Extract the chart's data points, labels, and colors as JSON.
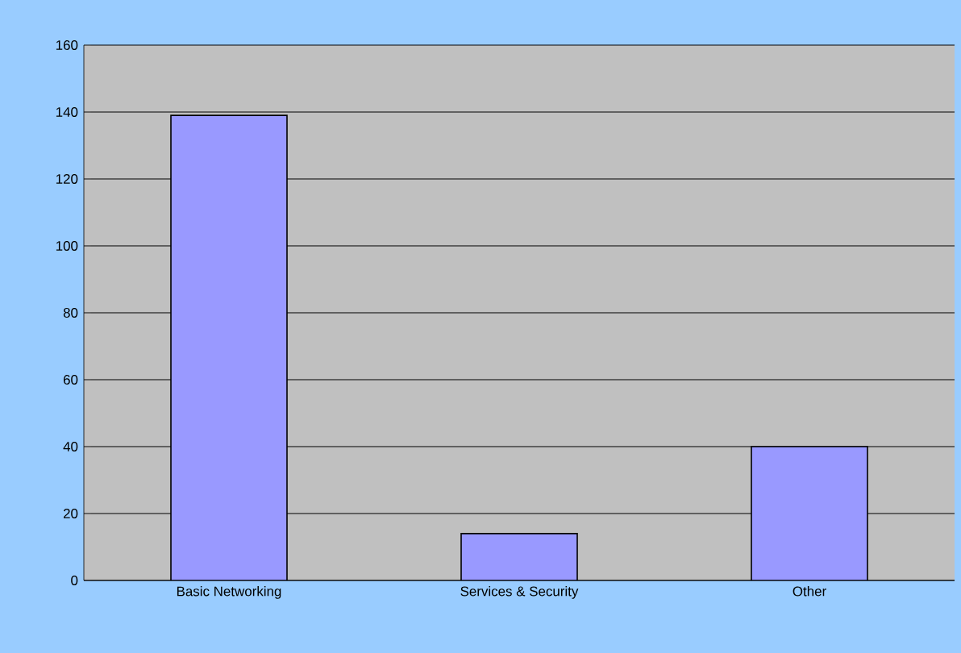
{
  "chart_data": {
    "type": "bar",
    "categories": [
      "Basic Networking",
      "Services & Security",
      "Other"
    ],
    "values": [
      139,
      14,
      40
    ],
    "color": "#9999ff",
    "ylim": [
      0,
      160
    ],
    "yticks": [
      0,
      20,
      40,
      60,
      80,
      100,
      120,
      140,
      160
    ],
    "grid": "y"
  }
}
